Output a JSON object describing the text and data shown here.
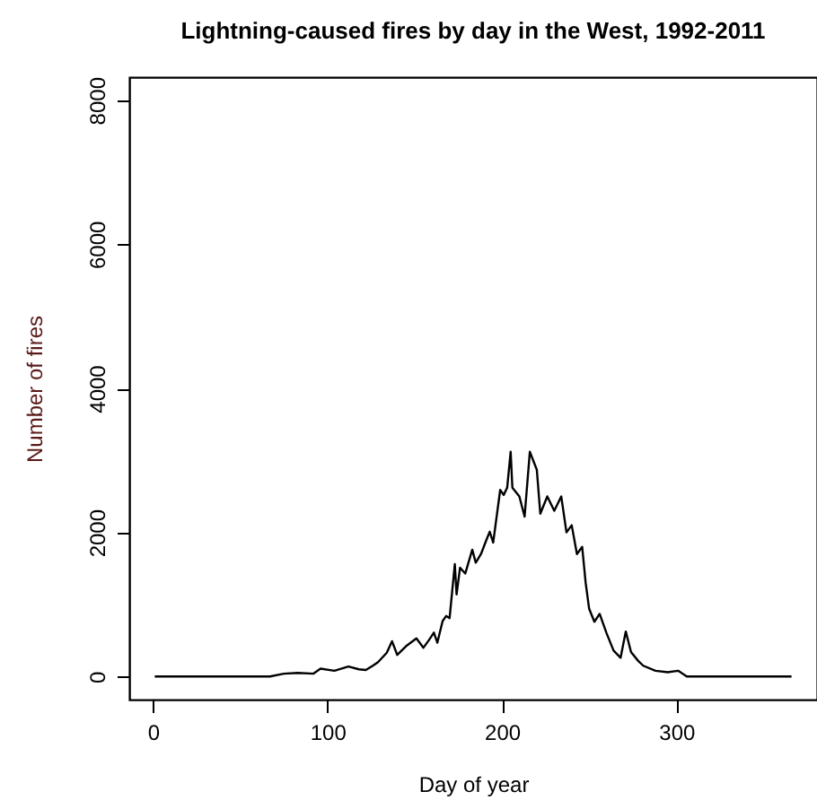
{
  "chart_data": {
    "type": "line",
    "title": "Lightning-caused fires by day in the West, 1992-2011",
    "xlabel": "Day of year",
    "ylabel": "Number of fires",
    "xlim": [
      -13.6,
      380.6
    ],
    "ylim": [
      -320,
      8320
    ],
    "xticks": [
      0,
      100,
      200,
      300
    ],
    "yticks": [
      0,
      2000,
      4000,
      6000,
      8000
    ],
    "series": [
      {
        "color": "#000000",
        "x": [
          1,
          67,
          75,
          83,
          92,
          96,
          104,
          112,
          118,
          122,
          126,
          129,
          134,
          137,
          140,
          145,
          151,
          155,
          158,
          161,
          163,
          166,
          168,
          170,
          173,
          174,
          176,
          179,
          183,
          185,
          188,
          191,
          193,
          195,
          199,
          201,
          203,
          205,
          206,
          210,
          213,
          216,
          220,
          222,
          226,
          230,
          234,
          237,
          240,
          243,
          246,
          248,
          250,
          253,
          256,
          260,
          264,
          268,
          271,
          274,
          278,
          281,
          288,
          295,
          301,
          306,
          366
        ],
        "values": [
          0,
          0,
          40,
          50,
          40,
          110,
          80,
          140,
          100,
          90,
          150,
          200,
          330,
          490,
          300,
          420,
          530,
          400,
          500,
          610,
          470,
          770,
          840,
          810,
          1560,
          1140,
          1510,
          1430,
          1760,
          1580,
          1700,
          1890,
          2010,
          1860,
          2590,
          2520,
          2620,
          3120,
          2620,
          2500,
          2220,
          3120,
          2870,
          2260,
          2500,
          2300,
          2500,
          2000,
          2100,
          1700,
          1800,
          1300,
          940,
          760,
          870,
          600,
          360,
          260,
          625,
          340,
          220,
          150,
          80,
          60,
          80,
          0,
          0
        ]
      }
    ]
  }
}
